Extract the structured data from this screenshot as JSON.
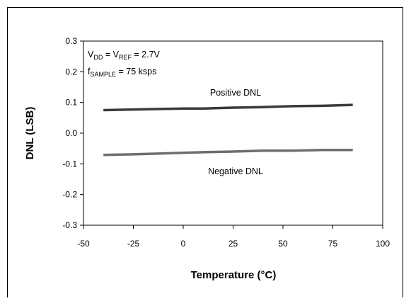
{
  "chart_data": {
    "type": "line",
    "xlabel": "Temperature (°C)",
    "ylabel": "DNL (LSB)",
    "xlim": [
      -50,
      100
    ],
    "ylim": [
      -0.3,
      0.3
    ],
    "x_ticks": [
      "-50",
      "-25",
      "0",
      "25",
      "50",
      "75",
      "100"
    ],
    "y_ticks": [
      "0.3",
      "0.2",
      "0.1",
      "0.0",
      "-0.1",
      "-0.2",
      "-0.3"
    ],
    "grid": false,
    "colors": {
      "positive": "#3a3a3a",
      "negative": "#6e6e6e"
    },
    "conditions": {
      "line1": {
        "v1": "V",
        "s1": "DD",
        "m": " = V",
        "s2": "REF",
        "end": " = 2.7V"
      },
      "line2": {
        "f": "f",
        "s": "SAMPLE",
        "end": " = 75 ksps"
      }
    },
    "series": [
      {
        "name": "Positive DNL",
        "x": [
          -40,
          -25,
          -10,
          0,
          10,
          25,
          40,
          55,
          70,
          85
        ],
        "y": [
          0.075,
          0.077,
          0.079,
          0.08,
          0.08,
          0.083,
          0.085,
          0.088,
          0.089,
          0.092
        ]
      },
      {
        "name": "Negative DNL",
        "x": [
          -40,
          -25,
          -10,
          0,
          10,
          25,
          40,
          55,
          70,
          85
        ],
        "y": [
          -0.071,
          -0.069,
          -0.066,
          -0.064,
          -0.062,
          -0.06,
          -0.057,
          -0.057,
          -0.055,
          -0.055
        ]
      }
    ]
  }
}
